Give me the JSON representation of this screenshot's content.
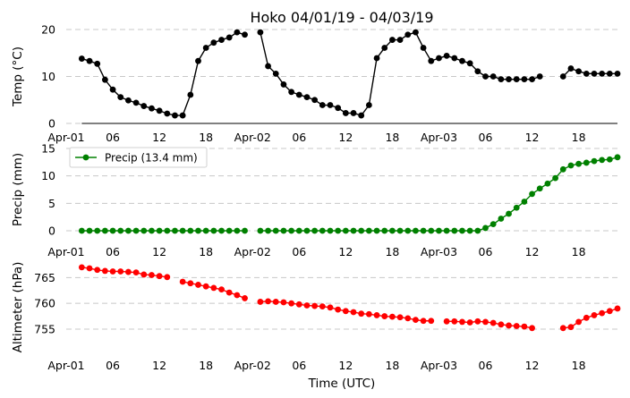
{
  "title": "Hoko 04/01/19 - 04/03/19",
  "xlabel": "Time (UTC)",
  "x_tick_labels": [
    "Apr-01",
    "06",
    "12",
    "18",
    "Apr-02",
    "06",
    "12",
    "18",
    "Apr-03",
    "06",
    "12",
    "18"
  ],
  "x_tick_hours": [
    0,
    6,
    12,
    18,
    24,
    30,
    36,
    42,
    48,
    54,
    60,
    66
  ],
  "x_range_hours": [
    0,
    71
  ],
  "chart_data": [
    {
      "type": "line",
      "ylabel": "Temp (°C)",
      "ylim": [
        0,
        20
      ],
      "yticks": [
        0,
        10,
        20
      ],
      "grid": true,
      "color": "#000000",
      "line_from_zero": true,
      "series": [
        {
          "x": [
            2,
            3,
            4,
            5,
            6,
            7,
            8,
            9,
            10,
            11,
            12,
            13,
            14,
            15,
            16,
            17,
            18,
            19,
            20,
            21,
            22,
            23,
            25,
            26,
            27,
            28,
            29,
            30,
            31,
            32,
            33,
            34,
            35,
            36,
            37,
            38,
            39,
            40,
            41,
            42,
            43,
            44,
            45,
            46,
            47,
            48,
            49,
            50,
            51,
            52,
            53,
            54,
            55,
            56,
            57,
            58,
            59,
            60,
            61,
            64,
            65,
            66,
            67,
            68,
            69,
            70,
            71
          ],
          "y": [
            13.8,
            13.3,
            12.7,
            9.3,
            7.2,
            5.6,
            4.9,
            4.4,
            3.7,
            3.2,
            2.7,
            2.1,
            1.7,
            1.7,
            6.1,
            13.3,
            16.1,
            17.2,
            17.8,
            18.3,
            19.4,
            18.9,
            19.4,
            12.2,
            10.6,
            8.3,
            6.7,
            6.1,
            5.6,
            5.0,
            3.9,
            3.9,
            3.3,
            2.2,
            2.2,
            1.7,
            3.9,
            13.9,
            16.1,
            17.8,
            17.8,
            18.9,
            19.4,
            16.1,
            13.3,
            13.9,
            14.4,
            13.9,
            13.3,
            12.8,
            11.1,
            10.0,
            10.0,
            9.4,
            9.4,
            9.4,
            9.4,
            9.4,
            10.0,
            10.0,
            11.7,
            11.1,
            10.6,
            10.6,
            10.6,
            10.6,
            10.6
          ]
        }
      ]
    },
    {
      "type": "line",
      "ylabel": "Precip (mm)",
      "ylim": [
        0,
        15
      ],
      "yticks": [
        0,
        5,
        10,
        15
      ],
      "grid": true,
      "color": "#008000",
      "legend": "upper-left",
      "series": [
        {
          "name": "Precip (13.4 mm)",
          "x": [
            2,
            3,
            4,
            5,
            6,
            7,
            8,
            9,
            10,
            11,
            12,
            13,
            14,
            15,
            16,
            17,
            18,
            19,
            20,
            21,
            22,
            23,
            25,
            26,
            27,
            28,
            29,
            30,
            31,
            32,
            33,
            34,
            35,
            36,
            37,
            38,
            39,
            40,
            41,
            42,
            43,
            44,
            45,
            46,
            47,
            48,
            49,
            50,
            51,
            52,
            53,
            54,
            55,
            56,
            57,
            58,
            59,
            60,
            61,
            62,
            63,
            64,
            65,
            66,
            67,
            68,
            69,
            70,
            71
          ],
          "y": [
            0,
            0,
            0,
            0,
            0,
            0,
            0,
            0,
            0,
            0,
            0,
            0,
            0,
            0,
            0,
            0,
            0,
            0,
            0,
            0,
            0,
            0,
            0,
            0,
            0,
            0,
            0,
            0,
            0,
            0,
            0,
            0,
            0,
            0,
            0,
            0,
            0,
            0,
            0,
            0,
            0,
            0,
            0,
            0,
            0,
            0,
            0,
            0,
            0,
            0,
            0,
            0.5,
            1.2,
            2.2,
            3.1,
            4.2,
            5.3,
            6.7,
            7.7,
            8.6,
            9.6,
            11.2,
            11.9,
            12.2,
            12.4,
            12.7,
            12.9,
            13.0,
            13.4
          ]
        }
      ]
    },
    {
      "type": "line",
      "ylabel": "Altimeter (hPa)",
      "ylim": [
        751,
        767.5
      ],
      "yticks": [
        755,
        760,
        765
      ],
      "grid": true,
      "color": "#ff0000",
      "series": [
        {
          "x": [
            2,
            3,
            4,
            5,
            6,
            7,
            8,
            9,
            10,
            11,
            12,
            13,
            15,
            16,
            17,
            18,
            19,
            20,
            21,
            22,
            23,
            25,
            26,
            27,
            28,
            29,
            30,
            31,
            32,
            33,
            34,
            35,
            36,
            37,
            38,
            39,
            40,
            41,
            42,
            43,
            44,
            45,
            46,
            47,
            49,
            50,
            51,
            52,
            53,
            54,
            55,
            56,
            57,
            58,
            59,
            60,
            64,
            65,
            66,
            67,
            68,
            69,
            70,
            71
          ],
          "y": [
            767.0,
            766.8,
            766.5,
            766.3,
            766.2,
            766.2,
            766.1,
            766.0,
            765.6,
            765.5,
            765.3,
            765.1,
            764.2,
            763.9,
            763.6,
            763.3,
            763.0,
            762.7,
            762.1,
            761.6,
            761.0,
            760.3,
            760.4,
            760.3,
            760.2,
            760.0,
            759.8,
            759.6,
            759.5,
            759.4,
            759.2,
            758.8,
            758.5,
            758.3,
            758.0,
            757.9,
            757.7,
            757.5,
            757.4,
            757.3,
            757.1,
            756.8,
            756.6,
            756.6,
            756.5,
            756.5,
            756.4,
            756.3,
            756.5,
            756.4,
            756.2,
            755.9,
            755.7,
            755.6,
            755.5,
            755.2,
            755.2,
            755.4,
            756.4,
            757.2,
            757.7,
            758.1,
            758.5,
            759.0
          ]
        }
      ]
    }
  ]
}
